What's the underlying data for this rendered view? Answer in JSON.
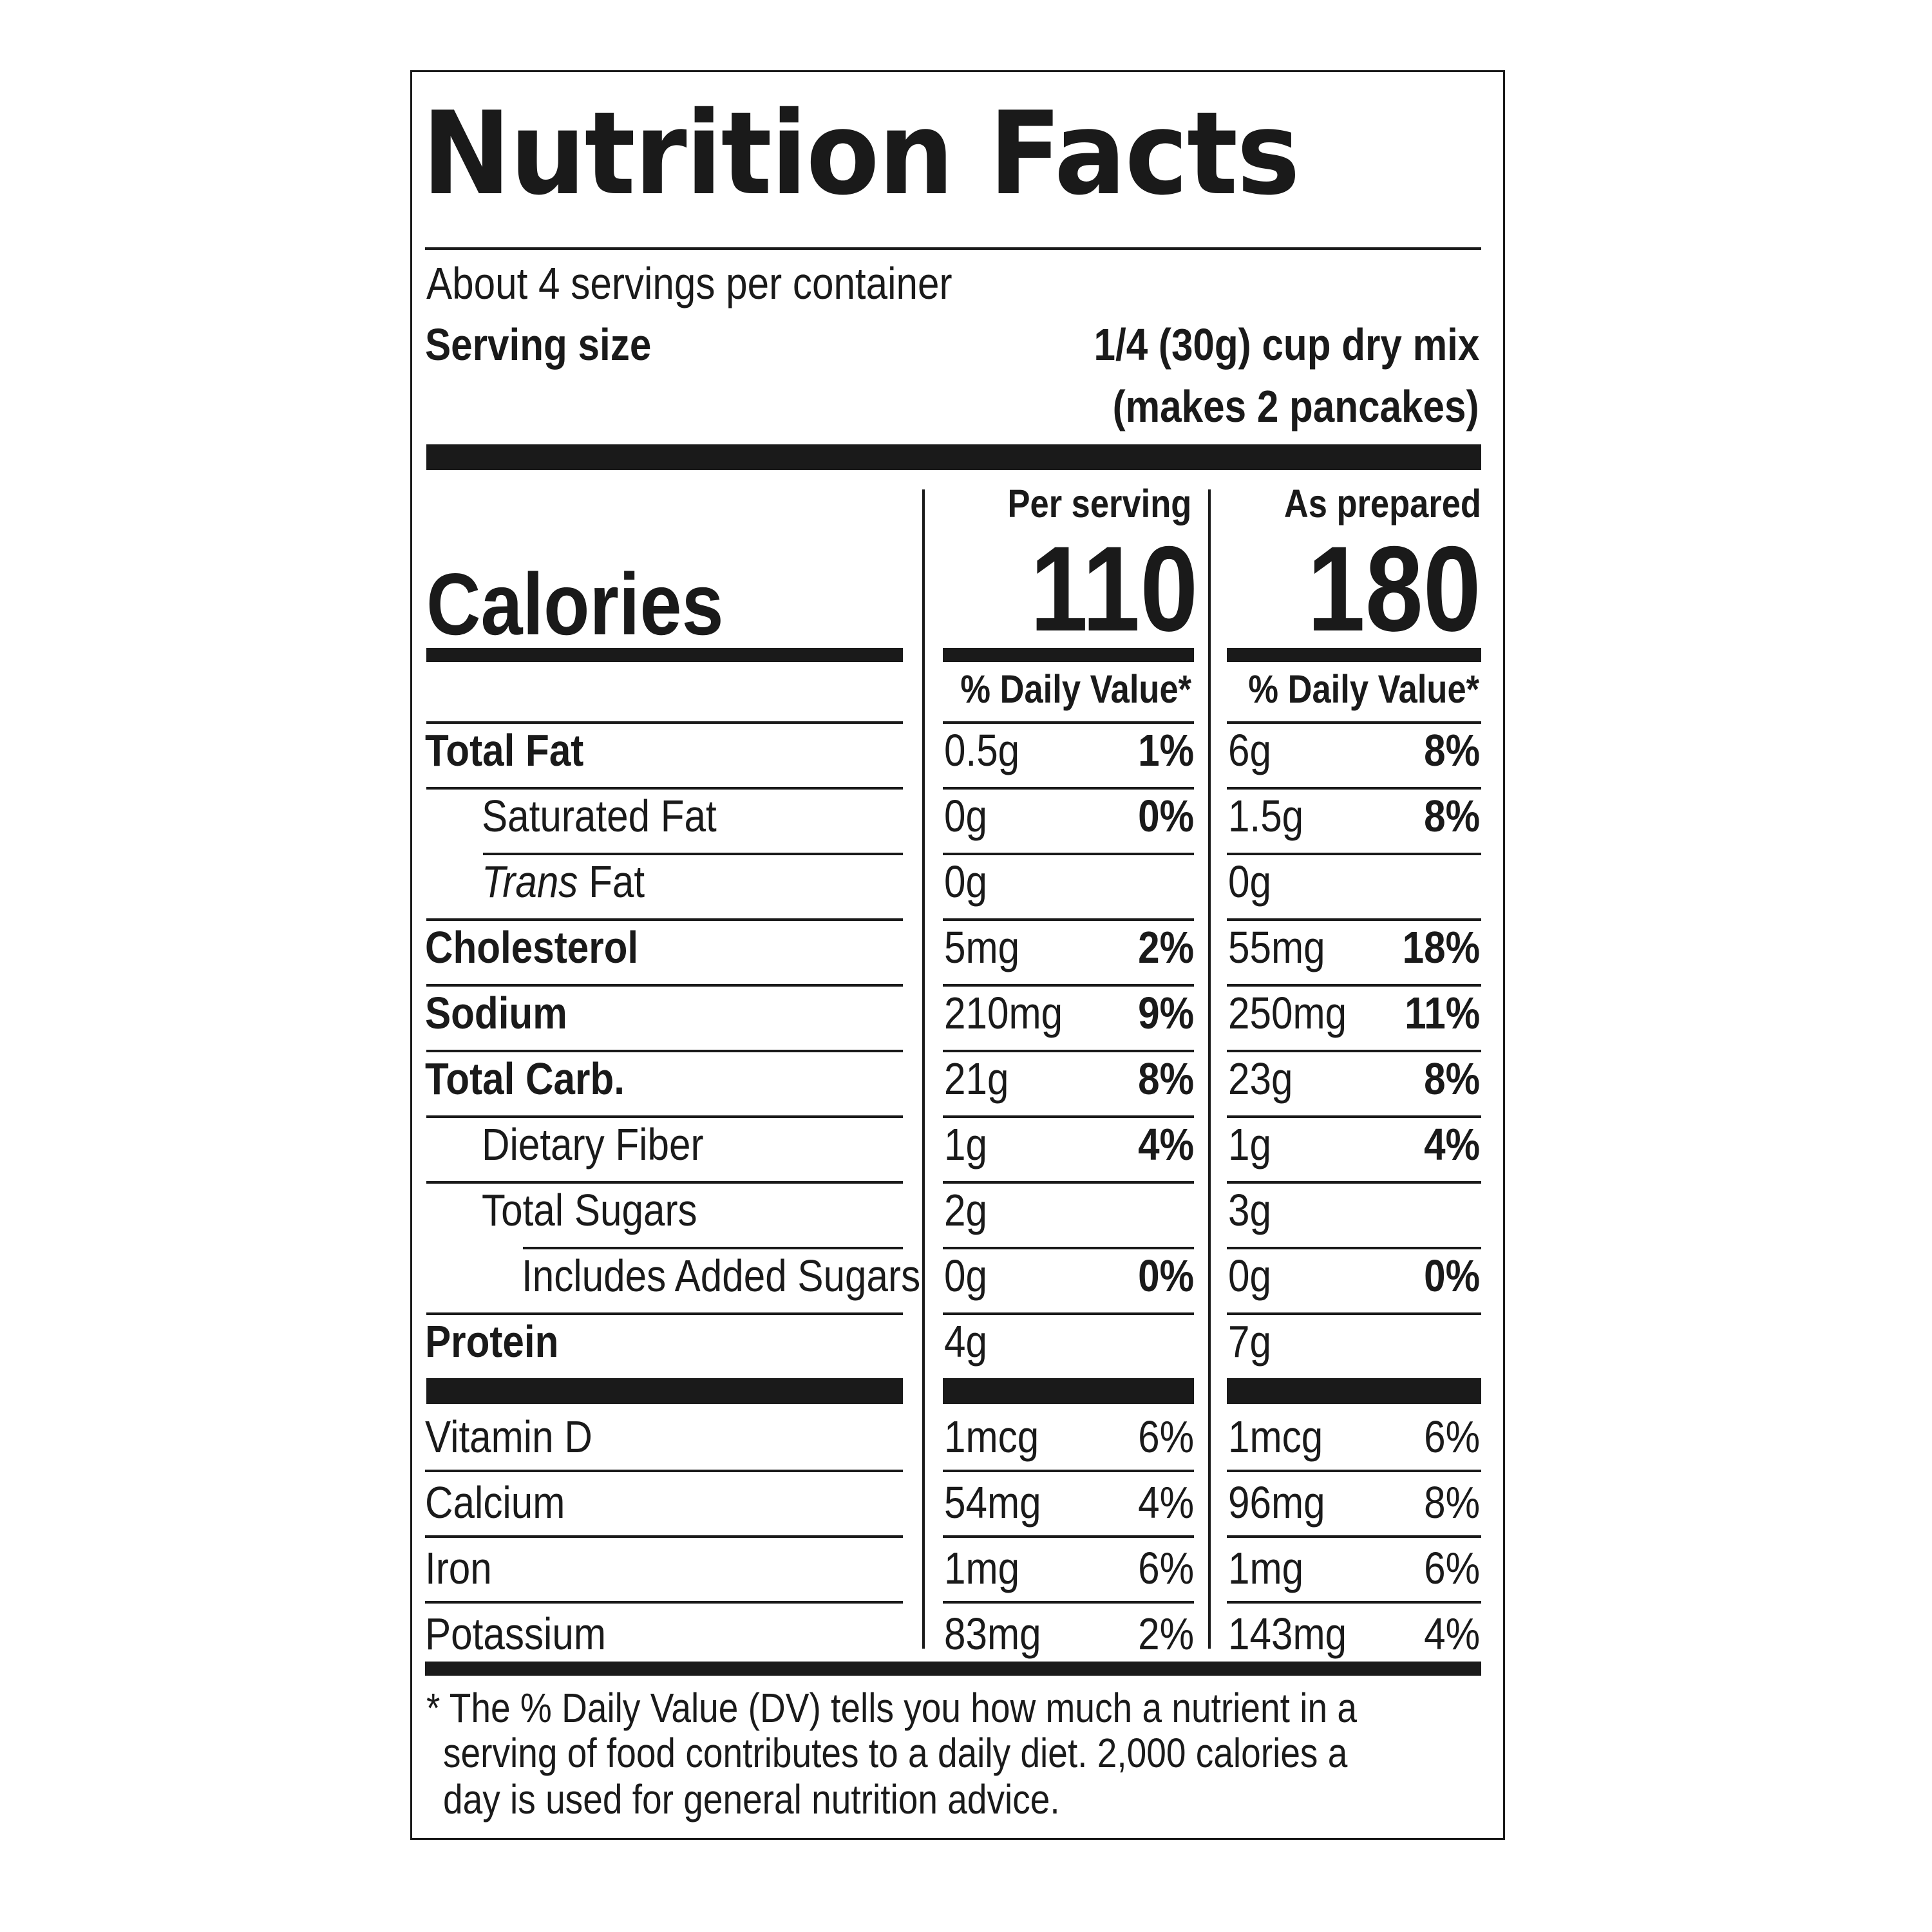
{
  "title": "Nutrition Facts",
  "servings_per_container": "About 4 servings per container",
  "serving_size": {
    "label": "Serving size",
    "value_line1": "1/4 (30g) cup dry mix",
    "value_line2": "(makes 2 pancakes)"
  },
  "calories": {
    "label": "Calories",
    "col1_header": "Per serving",
    "col1_value": "110",
    "col2_header": "As prepared",
    "col2_value": "180"
  },
  "dv_header": "% Daily Value*",
  "nutrients": [
    {
      "name": "Total Fat",
      "c1_amt": "0.5g",
      "c1_dv": "1%",
      "c2_amt": "6g",
      "c2_dv": "8%"
    },
    {
      "name": "Saturated Fat",
      "c1_amt": "0g",
      "c1_dv": "0%",
      "c2_amt": "1.5g",
      "c2_dv": "8%"
    },
    {
      "name_italic": "Trans",
      "name_rest": " Fat",
      "c1_amt": "0g",
      "c1_dv": "",
      "c2_amt": "0g",
      "c2_dv": ""
    },
    {
      "name": "Cholesterol",
      "c1_amt": "5mg",
      "c1_dv": "2%",
      "c2_amt": "55mg",
      "c2_dv": "18%"
    },
    {
      "name": "Sodium",
      "c1_amt": "210mg",
      "c1_dv": "9%",
      "c2_amt": "250mg",
      "c2_dv": "11%"
    },
    {
      "name": "Total Carb.",
      "c1_amt": "21g",
      "c1_dv": "8%",
      "c2_amt": "23g",
      "c2_dv": "8%"
    },
    {
      "name": "Dietary Fiber",
      "c1_amt": "1g",
      "c1_dv": "4%",
      "c2_amt": "1g",
      "c2_dv": "4%"
    },
    {
      "name": "Total Sugars",
      "c1_amt": "2g",
      "c1_dv": "",
      "c2_amt": "3g",
      "c2_dv": ""
    },
    {
      "name": "Includes Added Sugars",
      "c1_amt": "0g",
      "c1_dv": "0%",
      "c2_amt": "0g",
      "c2_dv": "0%"
    },
    {
      "name": "Protein",
      "c1_amt": "4g",
      "c1_dv": "",
      "c2_amt": "7g",
      "c2_dv": ""
    }
  ],
  "vitamins": [
    {
      "name": "Vitamin D",
      "c1_amt": "1mcg",
      "c1_dv": "6%",
      "c2_amt": "1mcg",
      "c2_dv": "6%"
    },
    {
      "name": "Calcium",
      "c1_amt": "54mg",
      "c1_dv": "4%",
      "c2_amt": "96mg",
      "c2_dv": "8%"
    },
    {
      "name": "Iron",
      "c1_amt": "1mg",
      "c1_dv": "6%",
      "c2_amt": "1mg",
      "c2_dv": "6%"
    },
    {
      "name": "Potassium",
      "c1_amt": "83mg",
      "c1_dv": "2%",
      "c2_amt": "143mg",
      "c2_dv": "4%"
    }
  ],
  "footnote": {
    "line1": "* The % Daily Value (DV) tells you how much a nutrient in a",
    "line2": "serving of food contributes to a daily diet. 2,000 calories a",
    "line3": "day is used for general nutrition advice."
  }
}
